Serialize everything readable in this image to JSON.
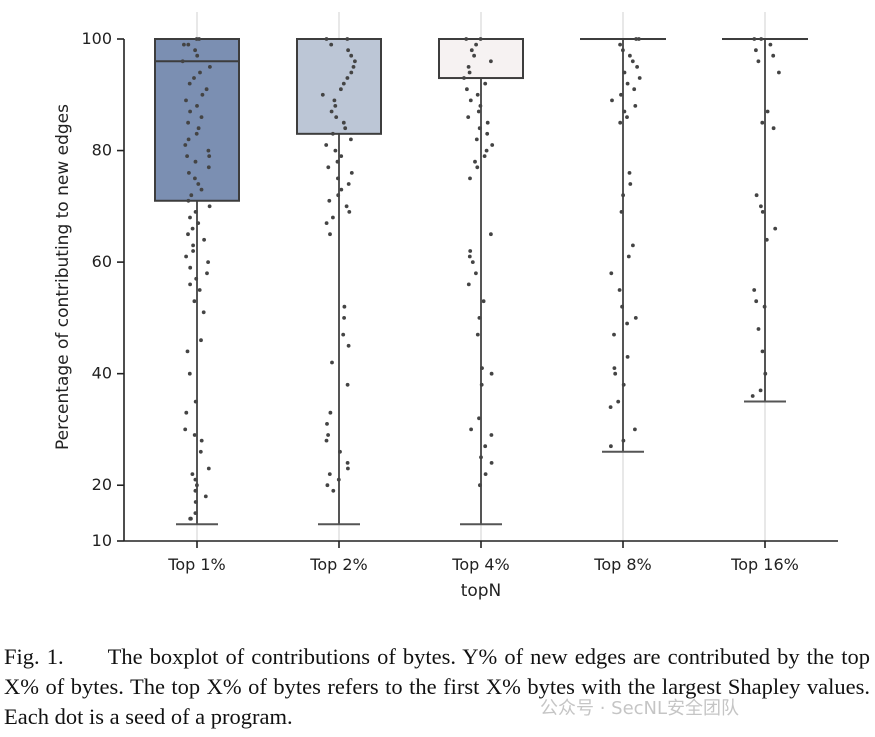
{
  "chart_data": {
    "type": "boxplot",
    "title": "",
    "xlabel": "topN",
    "ylabel": "Percentage of contributing to new edges",
    "ylim": [
      10,
      101
    ],
    "yticks": [
      10,
      20,
      40,
      60,
      80,
      100
    ],
    "categories": [
      "Top 1%",
      "Top 2%",
      "Top 4%",
      "Top 8%",
      "Top 16%"
    ],
    "boxes": [
      {
        "category": "Top 1%",
        "whisker_low": 13,
        "q1": 71,
        "median": 96,
        "q3": 100,
        "whisker_high": 100,
        "fill": "#7b8fb2"
      },
      {
        "category": "Top 2%",
        "whisker_low": 13,
        "q1": 83,
        "median": 100,
        "q3": 100,
        "whisker_high": 100,
        "fill": "#bcc6d6"
      },
      {
        "category": "Top 4%",
        "whisker_low": 13,
        "q1": 93,
        "median": 100,
        "q3": 100,
        "whisker_high": 100,
        "fill": "#f6f2f2"
      },
      {
        "category": "Top 8%",
        "whisker_low": 26,
        "q1": 100,
        "median": 100,
        "q3": 100,
        "whisker_high": 100,
        "fill": "#f1e8e4"
      },
      {
        "category": "Top 16%",
        "whisker_low": 35,
        "q1": 100,
        "median": 100,
        "q3": 100,
        "whisker_high": 100,
        "fill": "#e7d5cf"
      }
    ],
    "points": [
      [
        100,
        100,
        99,
        99,
        98,
        97,
        96,
        95,
        94,
        93,
        92,
        91,
        90,
        89,
        88,
        87,
        86,
        85,
        84,
        83,
        82,
        81,
        80,
        79,
        79,
        78,
        77,
        76,
        75,
        74,
        73,
        72,
        71,
        70,
        69,
        68,
        67,
        66,
        65,
        64,
        63,
        62,
        61,
        60,
        59,
        58,
        57,
        56,
        55,
        53,
        51,
        46,
        44,
        40,
        35,
        33,
        30,
        29,
        28,
        26,
        23,
        22,
        21,
        20,
        19,
        18,
        17,
        15,
        14,
        14
      ],
      [
        100,
        100,
        99,
        98,
        97,
        96,
        95,
        94,
        93,
        92,
        91,
        90,
        89,
        88,
        87,
        86,
        85,
        84,
        83,
        82,
        81,
        80,
        79,
        78,
        77,
        76,
        75,
        74,
        73,
        72,
        71,
        70,
        69,
        68,
        67,
        65,
        52,
        50,
        47,
        45,
        42,
        38,
        33,
        31,
        29,
        28,
        26,
        24,
        23,
        22,
        21,
        20,
        19
      ],
      [
        100,
        100,
        99,
        98,
        97,
        96,
        95,
        94,
        93,
        92,
        91,
        90,
        89,
        88,
        87,
        86,
        85,
        84,
        83,
        82,
        81,
        80,
        79,
        78,
        77,
        75,
        65,
        62,
        61,
        60,
        58,
        56,
        53,
        50,
        47,
        41,
        40,
        38,
        32,
        30,
        29,
        27,
        25,
        24,
        22,
        20
      ],
      [
        100,
        100,
        99,
        98,
        97,
        96,
        95,
        94,
        93,
        92,
        91,
        90,
        89,
        88,
        87,
        86,
        85,
        76,
        74,
        72,
        69,
        63,
        61,
        58,
        55,
        52,
        50,
        49,
        47,
        43,
        41,
        40,
        38,
        35,
        34,
        30,
        28,
        27
      ],
      [
        100,
        100,
        99,
        98,
        97,
        96,
        94,
        87,
        85,
        84,
        72,
        70,
        69,
        66,
        64,
        55,
        53,
        52,
        48,
        44,
        40,
        37,
        36
      ]
    ]
  },
  "caption": {
    "label": "Fig. 1.",
    "text": "The boxplot of contributions of bytes. Y% of new edges are contributed by the top X% of bytes. The top X% of bytes refers to the first X% bytes with the largest Shapley values. Each dot is a seed of a program."
  },
  "watermark": "公众号 · SecNL安全团队",
  "colors": {
    "axis": "#222222",
    "grid": "#d9d9d9",
    "dot": "#444444",
    "whisker": "#555555"
  }
}
